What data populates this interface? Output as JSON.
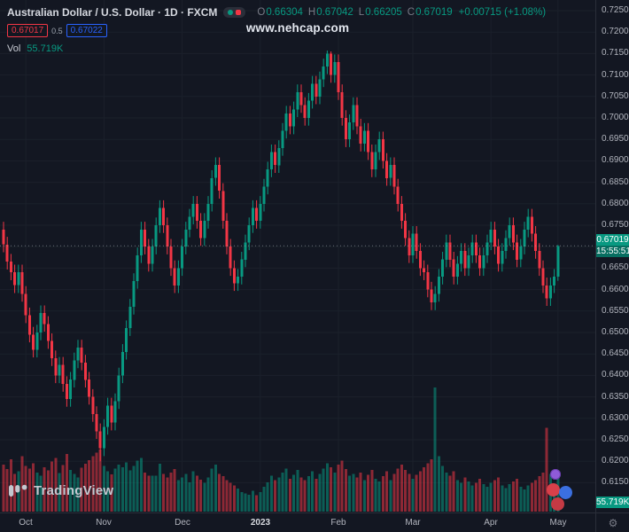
{
  "header": {
    "symbol_title": "Australian Dollar / U.S. Dollar · 1D · FXCM",
    "ohlc": {
      "o_label": "O",
      "o": "0.66304",
      "h_label": "H",
      "h": "0.67042",
      "l_label": "L",
      "l": "0.66205",
      "c_label": "C",
      "c": "0.67019",
      "change": "+0.00715 (+1.08%)"
    },
    "bid": "0.67017",
    "spread": "0.5",
    "ask": "0.67022",
    "vol_label": "Vol",
    "vol_value": "55.719K"
  },
  "watermark": "www.nehcap.com",
  "badges": {
    "price": "0.67019",
    "countdown": "15:55:51",
    "volume": "55.719K"
  },
  "price_axis": {
    "labels": [
      "0.72500",
      "0.72000",
      "0.71500",
      "0.71000",
      "0.70500",
      "0.70000",
      "0.69500",
      "0.69000",
      "0.68500",
      "0.68000",
      "0.67500",
      "0.67000",
      "0.66500",
      "0.66000",
      "0.65500",
      "0.65000",
      "0.64500",
      "0.64000",
      "0.63500",
      "0.63000",
      "0.62500",
      "0.62000",
      "0.61500"
    ]
  },
  "time_axis": {
    "labels": [
      {
        "label": "Oct",
        "index": 6,
        "major": false
      },
      {
        "label": "Nov",
        "index": 27,
        "major": false
      },
      {
        "label": "Dec",
        "index": 48,
        "major": false
      },
      {
        "label": "2023",
        "index": 69,
        "major": true
      },
      {
        "label": "Feb",
        "index": 90,
        "major": false
      },
      {
        "label": "Mar",
        "index": 110,
        "major": false
      },
      {
        "label": "Apr",
        "index": 131,
        "major": false
      },
      {
        "label": "May",
        "index": 149,
        "major": false
      }
    ]
  },
  "footer": {
    "logo_text": "TradingView"
  },
  "colors": {
    "background": "#131722",
    "up": "#089981",
    "down": "#f23645",
    "vol_up": "rgba(8,153,129,0.55)",
    "vol_down": "rgba(242,54,69,0.55)",
    "grid": "#1b202b",
    "axis_text": "#b2b5be",
    "bid": "#f23645",
    "ask": "#2962ff"
  },
  "chart_data": {
    "type": "candlestick",
    "symbol": "AUD/USD",
    "timeframe": "1D",
    "exchange": "FXCM",
    "title": "Australian Dollar / U.S. Dollar",
    "visible_price_range": [
      0.615,
      0.725
    ],
    "price_tick": 0.005,
    "last_price": 0.67019,
    "volume_unit": "K",
    "x_labels": [
      "Oct",
      "Nov",
      "Dec",
      "2023",
      "Feb",
      "Mar",
      "Apr",
      "May"
    ],
    "candles": [
      [
        0.674,
        0.6758,
        0.6687,
        0.6705
      ],
      [
        0.6705,
        0.6723,
        0.6647,
        0.6665
      ],
      [
        0.6665,
        0.6683,
        0.6622,
        0.664
      ],
      [
        0.664,
        0.6658,
        0.6592,
        0.661
      ],
      [
        0.661,
        0.6658,
        0.6592,
        0.664
      ],
      [
        0.664,
        0.6658,
        0.6572,
        0.659
      ],
      [
        0.659,
        0.6608,
        0.6522,
        0.654
      ],
      [
        0.654,
        0.6558,
        0.6477,
        0.6495
      ],
      [
        0.6495,
        0.6513,
        0.6442,
        0.646
      ],
      [
        0.646,
        0.6518,
        0.6442,
        0.65
      ],
      [
        0.65,
        0.6563,
        0.6482,
        0.6545
      ],
      [
        0.6545,
        0.6563,
        0.6502,
        0.652
      ],
      [
        0.652,
        0.6538,
        0.6462,
        0.648
      ],
      [
        0.648,
        0.6498,
        0.6422,
        0.644
      ],
      [
        0.644,
        0.6458,
        0.6382,
        0.64
      ],
      [
        0.64,
        0.6443,
        0.6382,
        0.6425
      ],
      [
        0.6425,
        0.6443,
        0.6362,
        0.638
      ],
      [
        0.638,
        0.6398,
        0.6327,
        0.6345
      ],
      [
        0.6345,
        0.6408,
        0.6327,
        0.639
      ],
      [
        0.639,
        0.6453,
        0.6372,
        0.6435
      ],
      [
        0.6435,
        0.6483,
        0.6417,
        0.6465
      ],
      [
        0.6465,
        0.6483,
        0.6412,
        0.643
      ],
      [
        0.643,
        0.6448,
        0.6372,
        0.639
      ],
      [
        0.639,
        0.6408,
        0.6332,
        0.635
      ],
      [
        0.635,
        0.6368,
        0.6292,
        0.631
      ],
      [
        0.631,
        0.6328,
        0.6252,
        0.627
      ],
      [
        0.627,
        0.6288,
        0.62,
        0.623
      ],
      [
        0.623,
        0.6298,
        0.6212,
        0.628
      ],
      [
        0.628,
        0.6348,
        0.6262,
        0.633
      ],
      [
        0.633,
        0.6348,
        0.6272,
        0.629
      ],
      [
        0.629,
        0.6358,
        0.6272,
        0.634
      ],
      [
        0.634,
        0.6418,
        0.6322,
        0.64
      ],
      [
        0.64,
        0.6473,
        0.6382,
        0.6455
      ],
      [
        0.6455,
        0.6528,
        0.6437,
        0.651
      ],
      [
        0.651,
        0.6578,
        0.6492,
        0.656
      ],
      [
        0.656,
        0.6638,
        0.6542,
        0.662
      ],
      [
        0.662,
        0.6698,
        0.6602,
        0.668
      ],
      [
        0.668,
        0.6758,
        0.6662,
        0.674
      ],
      [
        0.674,
        0.6758,
        0.6682,
        0.67
      ],
      [
        0.67,
        0.6718,
        0.6642,
        0.666
      ],
      [
        0.666,
        0.6718,
        0.6642,
        0.67
      ],
      [
        0.67,
        0.6768,
        0.6682,
        0.675
      ],
      [
        0.675,
        0.6808,
        0.6732,
        0.679
      ],
      [
        0.679,
        0.6808,
        0.6732,
        0.675
      ],
      [
        0.675,
        0.6768,
        0.6682,
        0.67
      ],
      [
        0.67,
        0.6718,
        0.6632,
        0.665
      ],
      [
        0.665,
        0.6668,
        0.6592,
        0.661
      ],
      [
        0.661,
        0.6668,
        0.6592,
        0.665
      ],
      [
        0.665,
        0.6718,
        0.6632,
        0.67
      ],
      [
        0.67,
        0.6758,
        0.6682,
        0.674
      ],
      [
        0.674,
        0.6788,
        0.6722,
        0.677
      ],
      [
        0.677,
        0.6818,
        0.6752,
        0.68
      ],
      [
        0.68,
        0.6818,
        0.6742,
        0.676
      ],
      [
        0.676,
        0.6778,
        0.6702,
        0.672
      ],
      [
        0.672,
        0.6778,
        0.6702,
        0.676
      ],
      [
        0.676,
        0.6818,
        0.6742,
        0.68
      ],
      [
        0.68,
        0.6878,
        0.6782,
        0.686
      ],
      [
        0.686,
        0.6908,
        0.6842,
        0.689
      ],
      [
        0.689,
        0.6908,
        0.6812,
        0.683
      ],
      [
        0.683,
        0.6848,
        0.6742,
        0.676
      ],
      [
        0.676,
        0.6778,
        0.6682,
        0.67
      ],
      [
        0.67,
        0.6718,
        0.6632,
        0.665
      ],
      [
        0.665,
        0.6668,
        0.6597,
        0.6615
      ],
      [
        0.6615,
        0.6648,
        0.6597,
        0.663
      ],
      [
        0.663,
        0.6688,
        0.6612,
        0.667
      ],
      [
        0.667,
        0.6728,
        0.6652,
        0.671
      ],
      [
        0.671,
        0.6768,
        0.6692,
        0.675
      ],
      [
        0.675,
        0.6808,
        0.6732,
        0.679
      ],
      [
        0.679,
        0.6808,
        0.6742,
        0.676
      ],
      [
        0.676,
        0.6818,
        0.6742,
        0.68
      ],
      [
        0.68,
        0.6858,
        0.6782,
        0.684
      ],
      [
        0.684,
        0.6898,
        0.6822,
        0.688
      ],
      [
        0.688,
        0.6938,
        0.6862,
        0.692
      ],
      [
        0.692,
        0.6938,
        0.6872,
        0.689
      ],
      [
        0.689,
        0.6948,
        0.6872,
        0.693
      ],
      [
        0.693,
        0.6988,
        0.6912,
        0.697
      ],
      [
        0.697,
        0.7028,
        0.6952,
        0.701
      ],
      [
        0.701,
        0.7028,
        0.6962,
        0.698
      ],
      [
        0.698,
        0.7038,
        0.6962,
        0.702
      ],
      [
        0.702,
        0.7078,
        0.7002,
        0.706
      ],
      [
        0.706,
        0.7078,
        0.7012,
        0.703
      ],
      [
        0.703,
        0.7048,
        0.6982,
        0.7
      ],
      [
        0.7,
        0.7058,
        0.6982,
        0.704
      ],
      [
        0.704,
        0.7098,
        0.7022,
        0.708
      ],
      [
        0.708,
        0.7098,
        0.7032,
        0.705
      ],
      [
        0.705,
        0.7108,
        0.7032,
        0.709
      ],
      [
        0.709,
        0.7138,
        0.7072,
        0.712
      ],
      [
        0.712,
        0.7157,
        0.7102,
        0.715
      ],
      [
        0.715,
        0.7155,
        0.7082,
        0.71
      ],
      [
        0.71,
        0.7148,
        0.7082,
        0.713
      ],
      [
        0.713,
        0.7148,
        0.7042,
        0.706
      ],
      [
        0.706,
        0.7078,
        0.6982,
        0.7
      ],
      [
        0.7,
        0.7018,
        0.6932,
        0.695
      ],
      [
        0.695,
        0.7008,
        0.6932,
        0.699
      ],
      [
        0.699,
        0.7048,
        0.6972,
        0.703
      ],
      [
        0.703,
        0.7048,
        0.6962,
        0.698
      ],
      [
        0.698,
        0.6998,
        0.6922,
        0.694
      ],
      [
        0.694,
        0.6988,
        0.6922,
        0.697
      ],
      [
        0.697,
        0.6988,
        0.6902,
        0.692
      ],
      [
        0.692,
        0.6938,
        0.6862,
        0.688
      ],
      [
        0.688,
        0.6938,
        0.6862,
        0.692
      ],
      [
        0.692,
        0.6968,
        0.6902,
        0.695
      ],
      [
        0.695,
        0.6968,
        0.6882,
        0.69
      ],
      [
        0.69,
        0.6918,
        0.6842,
        0.686
      ],
      [
        0.686,
        0.6908,
        0.6842,
        0.689
      ],
      [
        0.689,
        0.6908,
        0.6822,
        0.684
      ],
      [
        0.684,
        0.6858,
        0.6782,
        0.68
      ],
      [
        0.68,
        0.6818,
        0.6742,
        0.676
      ],
      [
        0.676,
        0.6778,
        0.6702,
        0.672
      ],
      [
        0.672,
        0.6738,
        0.6662,
        0.668
      ],
      [
        0.668,
        0.6748,
        0.6662,
        0.673
      ],
      [
        0.673,
        0.6748,
        0.6672,
        0.669
      ],
      [
        0.669,
        0.6708,
        0.6632,
        0.665
      ],
      [
        0.665,
        0.6668,
        0.6622,
        0.664
      ],
      [
        0.664,
        0.6658,
        0.6582,
        0.66
      ],
      [
        0.66,
        0.6618,
        0.6552,
        0.657
      ],
      [
        0.657,
        0.6608,
        0.6552,
        0.659
      ],
      [
        0.659,
        0.6648,
        0.6572,
        0.663
      ],
      [
        0.663,
        0.6688,
        0.6612,
        0.667
      ],
      [
        0.667,
        0.6728,
        0.6652,
        0.671
      ],
      [
        0.671,
        0.6728,
        0.6652,
        0.667
      ],
      [
        0.667,
        0.6688,
        0.6612,
        0.663
      ],
      [
        0.663,
        0.6678,
        0.6612,
        0.666
      ],
      [
        0.666,
        0.6708,
        0.6642,
        0.669
      ],
      [
        0.669,
        0.6708,
        0.6632,
        0.665
      ],
      [
        0.665,
        0.6698,
        0.6632,
        0.668
      ],
      [
        0.668,
        0.6728,
        0.6662,
        0.671
      ],
      [
        0.671,
        0.6728,
        0.6662,
        0.668
      ],
      [
        0.668,
        0.6698,
        0.6632,
        0.665
      ],
      [
        0.665,
        0.6698,
        0.6632,
        0.668
      ],
      [
        0.668,
        0.6728,
        0.6662,
        0.671
      ],
      [
        0.671,
        0.6758,
        0.6692,
        0.674
      ],
      [
        0.674,
        0.6758,
        0.6682,
        0.67
      ],
      [
        0.67,
        0.6718,
        0.6642,
        0.666
      ],
      [
        0.666,
        0.6708,
        0.6642,
        0.669
      ],
      [
        0.669,
        0.6738,
        0.6672,
        0.672
      ],
      [
        0.672,
        0.6768,
        0.6702,
        0.675
      ],
      [
        0.675,
        0.6768,
        0.6692,
        0.671
      ],
      [
        0.671,
        0.6728,
        0.6652,
        0.667
      ],
      [
        0.667,
        0.6718,
        0.6652,
        0.67
      ],
      [
        0.67,
        0.6758,
        0.6682,
        0.674
      ],
      [
        0.674,
        0.6788,
        0.6722,
        0.677
      ],
      [
        0.677,
        0.6788,
        0.6712,
        0.673
      ],
      [
        0.673,
        0.6748,
        0.6672,
        0.669
      ],
      [
        0.669,
        0.6708,
        0.6632,
        0.665
      ],
      [
        0.665,
        0.6668,
        0.6592,
        0.661
      ],
      [
        0.661,
        0.6628,
        0.6562,
        0.658
      ],
      [
        0.658,
        0.6628,
        0.6562,
        0.661
      ],
      [
        0.661,
        0.6648,
        0.6592,
        0.663
      ],
      [
        0.66304,
        0.67042,
        0.66205,
        0.67019
      ]
    ],
    "volumes": [
      72,
      65,
      80,
      58,
      62,
      85,
      70,
      66,
      74,
      60,
      55,
      68,
      63,
      77,
      82,
      59,
      71,
      88,
      64,
      58,
      52,
      67,
      73,
      79,
      85,
      90,
      95,
      70,
      62,
      57,
      66,
      72,
      68,
      75,
      63,
      70,
      78,
      82,
      60,
      55,
      55,
      55,
      73,
      58,
      52,
      60,
      65,
      48,
      52,
      58,
      45,
      62,
      55,
      49,
      44,
      52,
      66,
      72,
      58,
      54,
      48,
      44,
      40,
      35,
      30,
      28,
      26,
      32,
      25,
      30,
      38,
      45,
      55,
      48,
      52,
      60,
      66,
      50,
      56,
      64,
      52,
      48,
      54,
      62,
      50,
      58,
      66,
      74,
      68,
      60,
      72,
      78,
      65,
      55,
      58,
      52,
      60,
      48,
      56,
      64,
      50,
      46,
      54,
      62,
      48,
      58,
      66,
      72,
      64,
      58,
      50,
      56,
      62,
      68,
      74,
      80,
      190,
      85,
      70,
      60,
      55,
      62,
      48,
      44,
      52,
      46,
      40,
      44,
      50,
      42,
      38,
      44,
      48,
      52,
      40,
      36,
      42,
      46,
      50,
      38,
      34,
      40,
      44,
      48,
      54,
      60,
      128,
      58,
      42,
      55.719
    ]
  }
}
